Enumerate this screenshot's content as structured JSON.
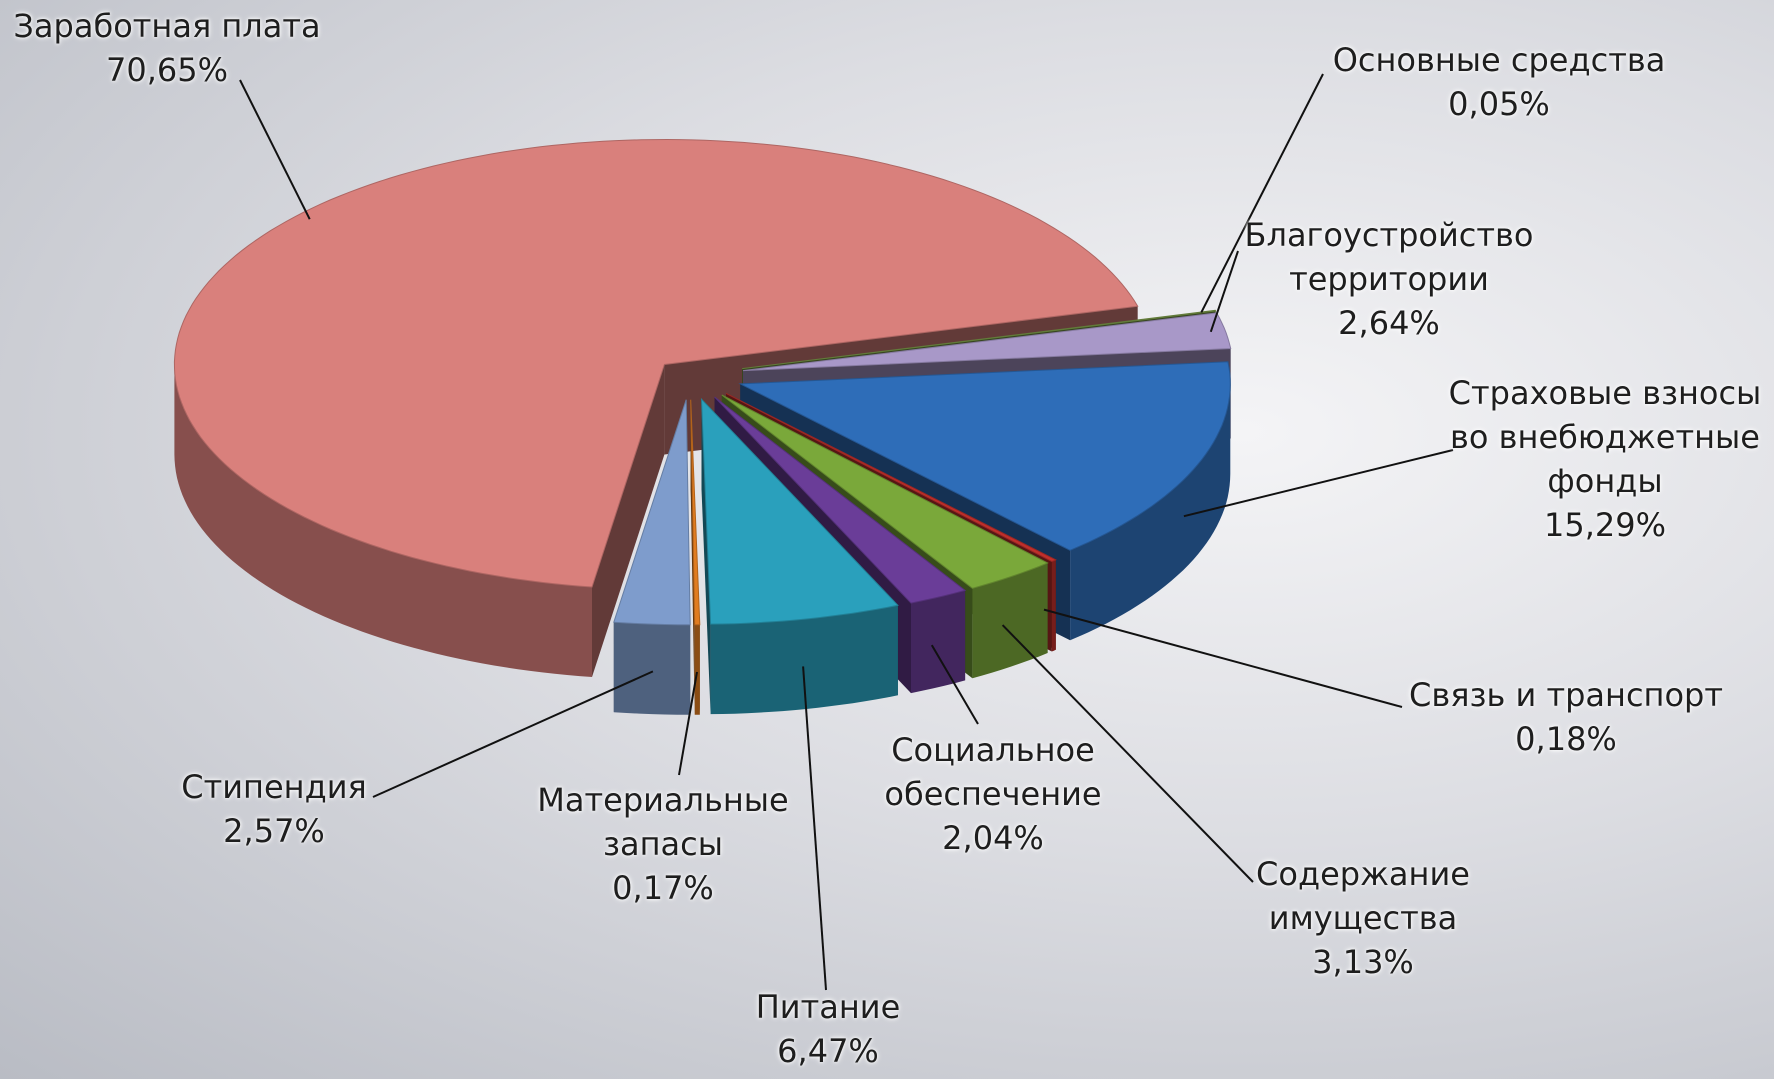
{
  "chart_data": {
    "type": "pie",
    "categories": [
      "Заработная плата",
      "Основные средства",
      "Благоустройство территории",
      "Страховые взносы во внебюджетные фонды",
      "Связь и транспорт",
      "Содержание имущества",
      "Социальное обеспечение",
      "Питание",
      "Материальные запасы",
      "Стипендия"
    ],
    "values": [
      70.65,
      0.05,
      2.64,
      15.29,
      0.18,
      3.13,
      2.04,
      6.47,
      0.17,
      2.57
    ],
    "value_labels": [
      "70,65%",
      "0,05%",
      "2,64%",
      "15,29%",
      "0,18%",
      "3,13%",
      "2,04%",
      "6,47%",
      "0,17%",
      "2,57%"
    ],
    "colors": [
      "#d9807c",
      "#7a9a48",
      "#a898c8",
      "#2e6db8",
      "#c0302c",
      "#7aa83a",
      "#6a3d98",
      "#2aa0bc",
      "#e07c20",
      "#7e9ccc"
    ]
  }
}
